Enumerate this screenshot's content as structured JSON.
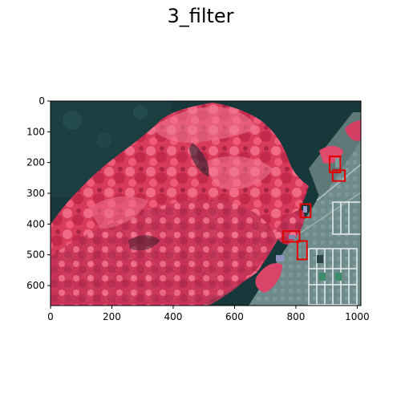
{
  "figure": {
    "title": "3_filter"
  },
  "chart_data": {
    "type": "image",
    "title": "3_filter",
    "xlim": [
      0,
      1012
    ],
    "ylim": [
      665,
      0
    ],
    "x_ticks": [
      0,
      200,
      400,
      600,
      800,
      1000
    ],
    "y_ticks": [
      0,
      100,
      200,
      300,
      400,
      500,
      600
    ],
    "image_description_colors": {
      "vegetation": "#e0395e",
      "shadow": "#1c3b3b",
      "pavement": "#6f8c8c",
      "box": "#e00000"
    },
    "detections": [
      {
        "x0": 910,
        "y0": 180,
        "x1": 945,
        "y1": 232
      },
      {
        "x0": 920,
        "y0": 225,
        "x1": 960,
        "y1": 260
      },
      {
        "x0": 815,
        "y0": 335,
        "x1": 848,
        "y1": 378
      },
      {
        "x0": 758,
        "y0": 423,
        "x1": 812,
        "y1": 458
      },
      {
        "x0": 805,
        "y0": 455,
        "x1": 836,
        "y1": 515
      }
    ]
  }
}
